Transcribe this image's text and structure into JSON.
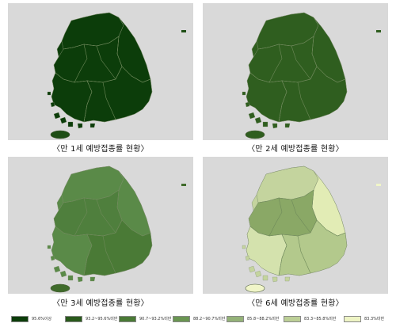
{
  "panels": [
    {
      "id": "age1",
      "caption": "〈만 1세 예방접종률 현황〉",
      "fill": "#0c3d0a",
      "islandFill": "#1e4e15",
      "regions": {
        "north": "#0c3d0a",
        "east": "#0c3d0a",
        "center": "#0c3d0a",
        "southwest": "#0c3d0a",
        "southeast": "#0c3d0a"
      }
    },
    {
      "id": "age2",
      "caption": "〈만 2세 예방접종률 현황〉",
      "fill": "#2f5e1f",
      "islandFill": "#2f5e1f",
      "regions": {
        "north": "#2f5e1f",
        "east": "#2f5e1f",
        "center": "#2f5e1f",
        "southwest": "#2f5e1f",
        "southeast": "#2f5e1f"
      }
    },
    {
      "id": "age3",
      "caption": "〈만 3세 예방접종률 현황〉",
      "fill": "#5a8a48",
      "islandFill": "#3f6b2b",
      "regions": {
        "north": "#5a8a48",
        "east": "#5a8a48",
        "center": "#4f7f3d",
        "southwest": "#5a8a48",
        "southeast": "#4a7a36"
      }
    },
    {
      "id": "age6",
      "caption": "〈만 6세 예방접종률 현황〉",
      "fill": "#c4d49e",
      "islandFill": "#f0f5c8",
      "regions": {
        "north": "#c4d49e",
        "east": "#e2ecb5",
        "center": "#8aa866",
        "southwest": "#d4e2ad",
        "southeast": "#b3c98c"
      }
    }
  ],
  "legend": [
    {
      "label": "95.6%이상",
      "color": "#0c3d0a"
    },
    {
      "label": "93.2~95.6%미만",
      "color": "#2a5a1c"
    },
    {
      "label": "90.7~93.2%미만",
      "color": "#4a7a36"
    },
    {
      "label": "88.2~90.7%미만",
      "color": "#6a9652"
    },
    {
      "label": "85.8~88.2%미만",
      "color": "#94b278"
    },
    {
      "label": "83.3~85.8%미만",
      "color": "#bccf96"
    },
    {
      "label": "83.3%미만",
      "color": "#eef4c4"
    }
  ]
}
